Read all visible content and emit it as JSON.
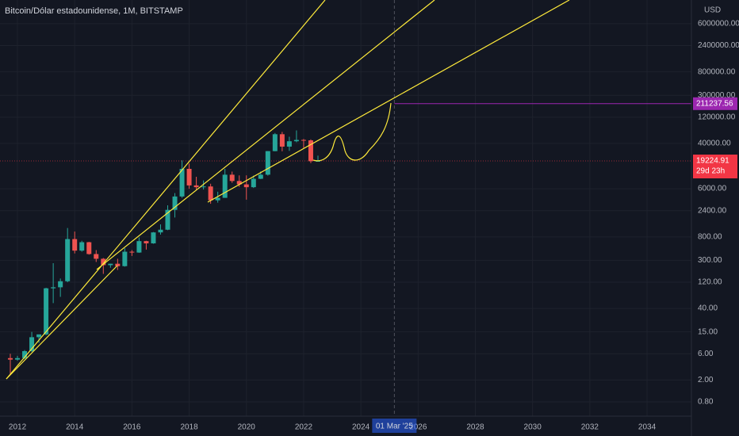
{
  "chart_data": {
    "type": "candlestick",
    "title": "Bitcoin/Dólar estadounidense, 1M, BITSTAMP",
    "currency": "USD",
    "log_scale": true,
    "grid": true,
    "up_color": "#26a69a",
    "down_color": "#ef5350",
    "x": [
      2011.75,
      2012.0,
      2012.25,
      2012.5,
      2012.75,
      2013.0,
      2013.25,
      2013.5,
      2013.75,
      2014.0,
      2014.25,
      2014.5,
      2014.75,
      2015.0,
      2015.25,
      2015.5,
      2015.75,
      2016.0,
      2016.25,
      2016.5,
      2016.75,
      2017.0,
      2017.25,
      2017.5,
      2017.75,
      2018.0,
      2018.25,
      2018.5,
      2018.75,
      2019.0,
      2019.25,
      2019.5,
      2019.75,
      2020.0,
      2020.25,
      2020.5,
      2020.75,
      2021.0,
      2021.25,
      2021.5,
      2021.75,
      2022.0,
      2022.25,
      2022.5
    ],
    "open": [
      5,
      4.7,
      5,
      6.7,
      12,
      13.5,
      93,
      97,
      125,
      730,
      450,
      640,
      390,
      320,
      245,
      260,
      235,
      430,
      415,
      670,
      610,
      965,
      1080,
      2480,
      4340,
      13800,
      6900,
      6400,
      6600,
      3700,
      4100,
      10800,
      8300,
      7200,
      6400,
      9100,
      10800,
      29000,
      58800,
      35000,
      43800,
      46300,
      45500,
      19000
    ],
    "high": [
      6,
      5.5,
      7,
      15,
      13.5,
      95,
      266,
      140,
      1160,
      1000,
      680,
      650,
      460,
      330,
      260,
      320,
      500,
      460,
      780,
      680,
      980,
      1350,
      3000,
      5000,
      19700,
      17200,
      9900,
      8500,
      7400,
      5300,
      13800,
      12300,
      10500,
      10500,
      10400,
      12400,
      29000,
      61800,
      64800,
      52900,
      69000,
      48200,
      47400,
      24000
    ],
    "low": [
      2.5,
      4.5,
      4.8,
      6.5,
      9.5,
      13,
      50,
      65,
      120,
      400,
      430,
      380,
      280,
      170,
      220,
      200,
      230,
      360,
      410,
      470,
      600,
      880,
      1060,
      1800,
      4100,
      6000,
      5800,
      5800,
      3200,
      3350,
      4100,
      7700,
      6500,
      3800,
      6200,
      9000,
      10400,
      28800,
      28800,
      29300,
      42000,
      33000,
      17600,
      18700
    ],
    "close": [
      4.7,
      5,
      6.7,
      12,
      13.5,
      93,
      97,
      125,
      730,
      450,
      640,
      390,
      320,
      245,
      260,
      235,
      430,
      415,
      670,
      610,
      965,
      1080,
      2480,
      4340,
      13800,
      6900,
      6400,
      6600,
      3700,
      4100,
      10800,
      8300,
      7200,
      6400,
      9100,
      10800,
      29000,
      58800,
      35000,
      43800,
      46300,
      45500,
      19000,
      19224.91
    ],
    "xlim": [
      2011.39,
      2035.55
    ],
    "ylim": [
      0.44,
      16200000
    ],
    "xticks": [
      2012,
      2014,
      2016,
      2018,
      2020,
      2022,
      2024,
      2026,
      2028,
      2030,
      2032,
      2034
    ],
    "yticks": [
      {
        "value": 6000000,
        "label": "6000000.00"
      },
      {
        "value": 2400000,
        "label": "2400000.00"
      },
      {
        "value": 800000,
        "label": "800000.00"
      },
      {
        "value": 300000,
        "label": "300000.00"
      },
      {
        "value": 120000,
        "label": "120000.00"
      },
      {
        "value": 40000,
        "label": "40000.00"
      },
      {
        "value": 6000,
        "label": "6000.00"
      },
      {
        "value": 2400,
        "label": "2400.00"
      },
      {
        "value": 800,
        "label": "800.00"
      },
      {
        "value": 300,
        "label": "300.00"
      },
      {
        "value": 120,
        "label": "120.00"
      },
      {
        "value": 40,
        "label": "40.00"
      },
      {
        "value": 15,
        "label": "15.00"
      },
      {
        "value": 6,
        "label": "6.00"
      },
      {
        "value": 2,
        "label": "2.00"
      },
      {
        "value": 0.8,
        "label": "0.80"
      }
    ],
    "last_price": {
      "value": 19224.91,
      "label": "19224.91",
      "color": "#f23645"
    },
    "countdown": "29d 23h",
    "horizontal_line": {
      "value": 211237.56,
      "label": "211237.56",
      "color": "#9c27b0"
    },
    "crosshair_x": {
      "value": 2025.17,
      "label": "01 Mar '25"
    }
  }
}
